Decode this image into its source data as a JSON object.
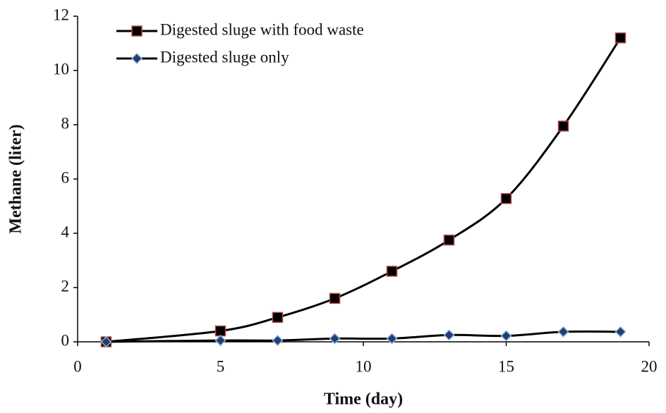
{
  "chart_data": {
    "type": "line",
    "x_label": "Time (day)",
    "y_label": "Methane (liter)",
    "x": [
      1,
      5,
      7,
      9,
      11,
      13,
      15,
      17,
      19
    ],
    "series": [
      {
        "name": "Digested sluge with food waste",
        "color": "#000000",
        "marker": "square",
        "marker_fill": "#000000",
        "marker_stroke": "#b04a4a",
        "values": [
          0,
          0.4,
          0.9,
          1.6,
          2.6,
          3.75,
          5.28,
          7.95,
          11.2
        ]
      },
      {
        "name": "Digested sluge only",
        "color": "#000000",
        "marker": "diamond",
        "marker_fill": "#1f3f6e",
        "marker_stroke": "#8fb4e0",
        "values": [
          0,
          0.05,
          0.05,
          0.12,
          0.12,
          0.25,
          0.22,
          0.37,
          0.37
        ]
      }
    ],
    "xlim": [
      0,
      20
    ],
    "xticks": [
      0,
      5,
      10,
      15,
      20
    ],
    "ylim": [
      0,
      12
    ],
    "yticks": [
      0,
      2,
      4,
      6,
      8,
      10,
      12
    ],
    "grid": false,
    "legend": "top-left"
  }
}
